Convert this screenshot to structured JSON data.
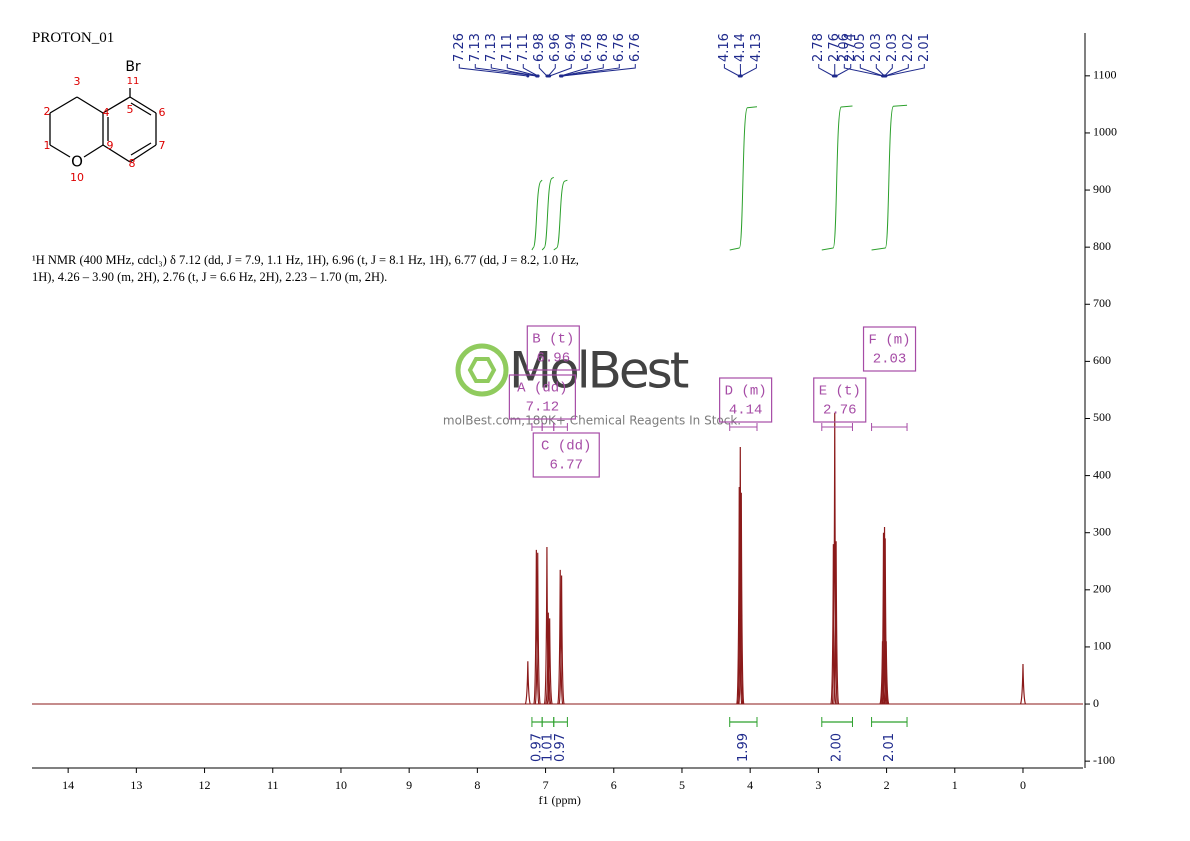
{
  "title": "PROTON_01",
  "description": "¹H NMR (400 MHz, cdcl₃) δ 7.12 (dd, J = 7.9, 1.1 Hz, 1H), 6.96 (t, J = 8.1 Hz, 1H), 6.77 (dd, J = 8.2, 1.0 Hz, 1H), 4.26 – 3.90 (m, 2H), 2.76 (t, J = 6.6 Hz, 2H), 2.23 – 1.70 (m, 2H).",
  "watermark": {
    "brand": "MolBest",
    "tagline": "molBest.com,180K+ Chemical Reagents In Stock."
  },
  "molecule": {
    "labels": [
      "Br",
      "11",
      "2",
      "3",
      "4",
      "5",
      "6",
      "1",
      "9",
      "7",
      "8",
      "O",
      "10"
    ]
  },
  "chart_data": {
    "type": "nmr",
    "xlabel": "f1 (ppm)",
    "xlim": [
      14.53,
      -0.88
    ],
    "xticks": [
      14,
      13,
      12,
      11,
      10,
      9,
      8,
      7,
      6,
      5,
      4,
      3,
      2,
      1,
      0
    ],
    "ylim": [
      -112,
      1175
    ],
    "yticks": [
      -100,
      0,
      100,
      200,
      300,
      400,
      500,
      600,
      700,
      800,
      900,
      1000,
      1100
    ],
    "color": "#8b1a1a",
    "integral_color": "#2ca02c",
    "label_color": "#1f2a8c",
    "box_color": "#a64ca6",
    "peaks": {
      "x": [
        7.26,
        7.135,
        7.115,
        6.98,
        6.96,
        6.94,
        6.785,
        6.765,
        4.16,
        4.145,
        4.13,
        2.78,
        2.76,
        2.74,
        2.06,
        2.045,
        2.03,
        2.02,
        2.005,
        0.0
      ],
      "values": [
        75,
        270,
        265,
        275,
        160,
        150,
        235,
        225,
        380,
        450,
        370,
        280,
        510,
        285,
        110,
        300,
        310,
        290,
        110,
        70
      ]
    },
    "peak_labels": [
      7.26,
      7.13,
      7.13,
      7.11,
      7.11,
      6.98,
      6.96,
      6.94,
      6.78,
      6.78,
      6.76,
      6.76,
      4.16,
      4.14,
      4.13,
      2.78,
      2.76,
      2.74,
      2.06,
      2.05,
      2.03,
      2.03,
      2.02,
      2.01
    ],
    "integrals": {
      "values": [
        0.97,
        1.01,
        0.97,
        1.99,
        2,
        2.01
      ],
      "value_labels": [
        "0.97",
        "1.01",
        "0.97",
        "1.99",
        "2.00",
        "2.01"
      ],
      "ranges": [
        [
          7.2,
          7.05
        ],
        [
          7.05,
          6.88
        ],
        [
          6.88,
          6.68
        ],
        [
          4.3,
          3.9
        ],
        [
          2.95,
          2.5
        ],
        [
          2.22,
          1.7
        ]
      ]
    },
    "multiplets": [
      {
        "name": "A (dd)",
        "shift": 7.12
      },
      {
        "name": "B (t)",
        "shift": 6.96
      },
      {
        "name": "C (dd)",
        "shift": 6.77
      },
      {
        "name": "D (m)",
        "shift": 4.14
      },
      {
        "name": "E (t)",
        "shift": 2.76
      },
      {
        "name": "F (m)",
        "shift": 2.03
      }
    ]
  }
}
